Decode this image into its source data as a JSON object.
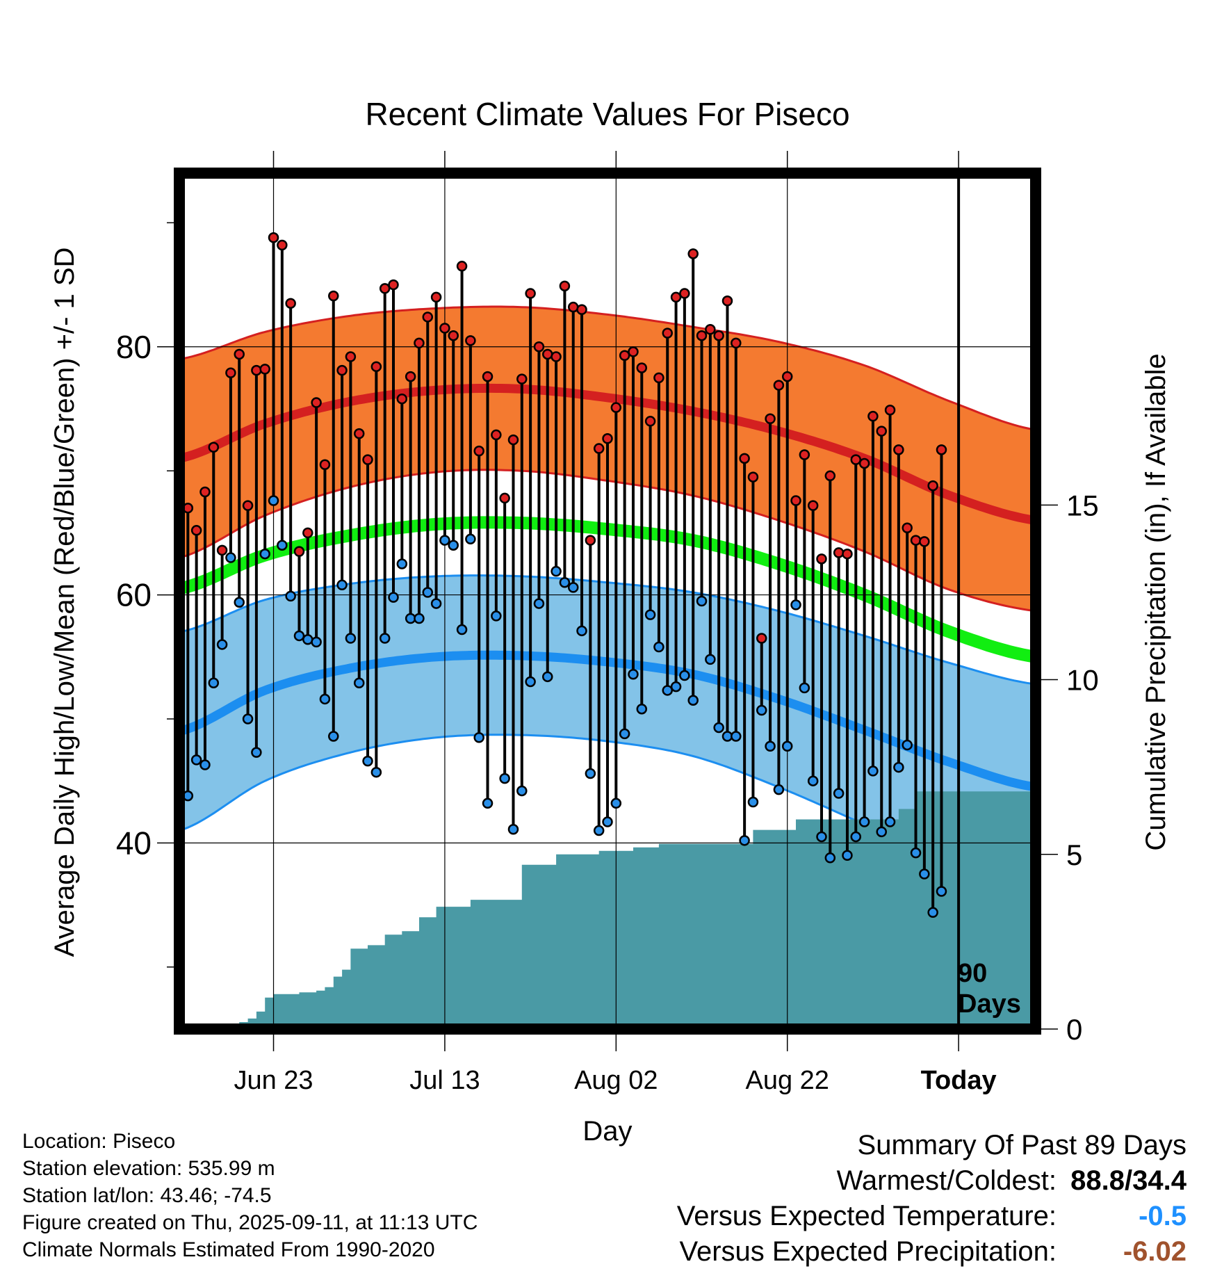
{
  "title": "Recent Climate Values For Piseco",
  "xlabel": "Day",
  "ylabel_left": "Average Daily High/Low/Mean (Red/Blue/Green) +/- 1 SD",
  "ylabel_right": "Cumulative Precipitation (in), If Available",
  "days_marker_line1": "90",
  "days_marker_line2": "Days",
  "meta": {
    "location": "Location: Piseco",
    "elevation": "Station elevation: 535.99 m",
    "latlon": "Station lat/lon: 43.46; -74.5",
    "created": "Figure created on Thu, 2025-09-11, at 11:13 UTC",
    "normals": "Climate Normals Estimated From 1990-2020"
  },
  "summary": {
    "heading": "Summary Of Past 89 Days",
    "warmest_label": "Warmest/Coldest:",
    "warmest_value": "88.8/34.4",
    "temp_label": "Versus Expected Temperature:",
    "temp_value": "-0.5",
    "precip_label": "Versus Expected Precipitation:",
    "precip_value": "-6.02"
  },
  "colors": {
    "high_band": "#f47a30",
    "high_line": "#d42020",
    "low_band": "#83c3e8",
    "low_line": "#1c8ef0",
    "mean_line": "#11ee11",
    "precip_fill": "#4a9aa5",
    "high_point": "#dd2222",
    "low_point": "#2a8fe8",
    "temp_value": "#1e90ff",
    "precip_value": "#a0522d"
  },
  "chart_data": {
    "type": "line",
    "x_tick_labels": [
      "Jun 23",
      "Jul 13",
      "Aug 02",
      "Aug 22",
      "Today"
    ],
    "x_tick_days": [
      11,
      31,
      51,
      71,
      91
    ],
    "xlim": [
      0,
      100
    ],
    "ylim_temp": [
      25,
      94
    ],
    "ylim_precip": [
      0,
      24.5
    ],
    "y_ticks_left": [
      40,
      60,
      80
    ],
    "y_ticks_right": [
      0,
      5,
      10,
      15
    ],
    "normals": {
      "days": [
        0,
        10,
        20,
        30,
        40,
        50,
        60,
        70,
        80,
        90,
        100
      ],
      "high_mean": [
        71.0,
        73.8,
        75.6,
        76.5,
        76.6,
        75.9,
        74.8,
        73.2,
        71.0,
        68.0,
        66.0
      ],
      "high_sd": [
        8.0,
        7.4,
        6.9,
        6.6,
        6.6,
        6.7,
        6.8,
        7.2,
        7.5,
        7.6,
        7.3
      ],
      "mean_line": [
        60.5,
        63.2,
        64.8,
        65.7,
        65.8,
        65.3,
        64.4,
        62.5,
        60.0,
        57.0,
        55.0
      ],
      "low_mean": [
        49.0,
        52.3,
        54.1,
        55.0,
        55.1,
        54.6,
        53.6,
        51.6,
        49.1,
        46.5,
        44.5
      ],
      "low_sd": [
        8.0,
        7.3,
        6.8,
        6.5,
        6.4,
        6.4,
        6.6,
        7.1,
        7.6,
        8.0,
        8.3
      ]
    },
    "series": [
      {
        "name": "High",
        "start_day": 1,
        "values": [
          67,
          65.2,
          68.3,
          71.9,
          63.6,
          77.9,
          79.4,
          67.2,
          78.1,
          78.2,
          88.8,
          88.2,
          83.5,
          63.5,
          65,
          75.5,
          70.5,
          84.1,
          78.1,
          79.2,
          73,
          70.9,
          78.4,
          84.7,
          85,
          75.8,
          77.6,
          80.3,
          82.4,
          84,
          81.5,
          80.9,
          86.5,
          80.5,
          71.6,
          77.6,
          72.9,
          67.8,
          72.5,
          77.4,
          84.3,
          80,
          79.4,
          79.2,
          84.9,
          83.2,
          83,
          64.4,
          71.8,
          72.6,
          75.1,
          79.3,
          79.6,
          78.3,
          74,
          77.5,
          81.1,
          84,
          84.3,
          87.5,
          80.9,
          81.4,
          80.9,
          83.7,
          80.3,
          71,
          69.5,
          56.5,
          74.2,
          76.9,
          77.6,
          67.6,
          71.3,
          67.2,
          62.9,
          69.6,
          63.4,
          63.3,
          70.9,
          70.6,
          74.4,
          73.2,
          74.9,
          71.7,
          65.4,
          64.4,
          64.3,
          68.8,
          71.7
        ]
      },
      {
        "name": "Low",
        "start_day": 1,
        "values": [
          43.8,
          46.7,
          46.3,
          52.9,
          56,
          63,
          59.4,
          50,
          47.3,
          63.3,
          67.6,
          64,
          59.9,
          56.7,
          56.4,
          56.2,
          51.6,
          48.6,
          60.8,
          56.5,
          52.9,
          46.6,
          45.7,
          56.5,
          59.8,
          62.5,
          58.1,
          58.1,
          60.2,
          59.3,
          64.4,
          64,
          57.2,
          64.5,
          48.5,
          43.2,
          58.3,
          45.2,
          41.1,
          44.2,
          53,
          59.3,
          53.4,
          61.9,
          61,
          60.6,
          57.1,
          45.6,
          41,
          41.7,
          43.2,
          48.8,
          53.6,
          50.8,
          58.4,
          55.8,
          52.3,
          52.6,
          53.5,
          51.5,
          59.5,
          54.8,
          49.3,
          48.6,
          48.6,
          40.2,
          43.3,
          50.7,
          47.8,
          44.3,
          47.8,
          59.2,
          52.5,
          45,
          40.5,
          38.8,
          44,
          39,
          40.5,
          41.7,
          45.8,
          40.9,
          41.7,
          46.1,
          47.9,
          39.2,
          37.5,
          34.4,
          36.1
        ]
      }
    ],
    "precip": {
      "days": [
        0,
        5,
        6,
        7,
        8,
        9,
        10,
        11,
        14,
        16,
        17,
        18,
        19,
        20,
        22,
        24,
        26,
        28,
        30,
        34,
        40,
        44,
        49,
        53,
        56,
        67,
        72,
        84,
        86,
        100
      ],
      "values": [
        0,
        0,
        0.1,
        0.2,
        0.3,
        0.5,
        0.9,
        1.0,
        1.05,
        1.1,
        1.2,
        1.5,
        1.7,
        2.3,
        2.4,
        2.7,
        2.8,
        3.2,
        3.5,
        3.7,
        4.7,
        5.0,
        5.1,
        5.2,
        5.3,
        5.7,
        6.0,
        6.3,
        6.8,
        7.1
      ]
    }
  }
}
